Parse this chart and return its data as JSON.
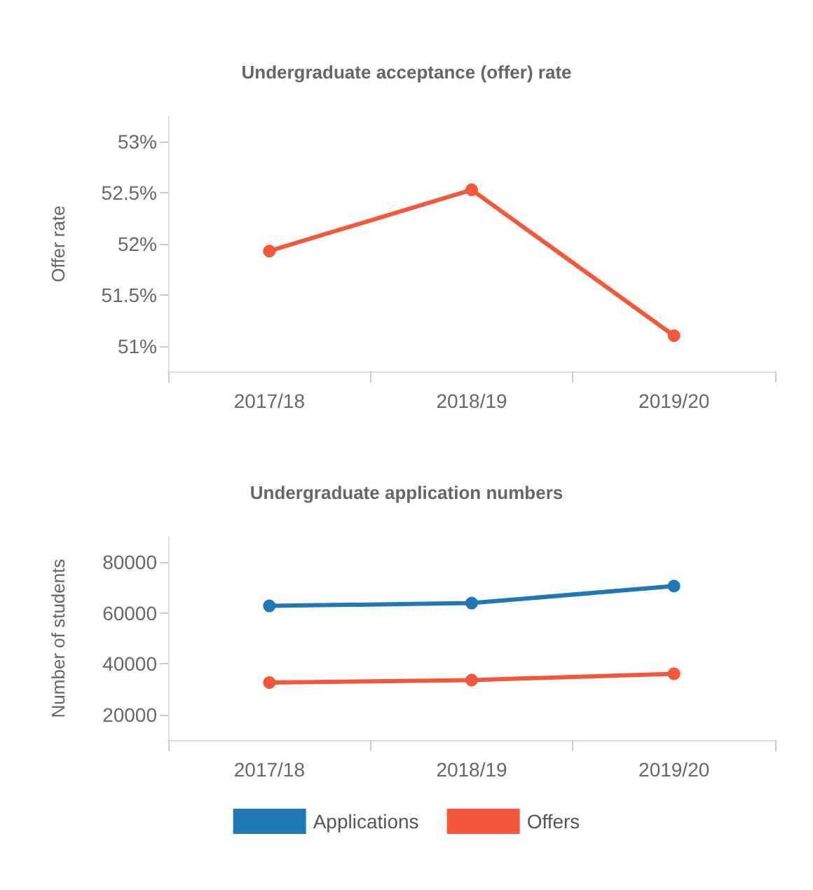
{
  "chart_data": [
    {
      "type": "line",
      "title": "Undergraduate acceptance (offer) rate",
      "ylabel": "Offer rate",
      "categories": [
        "2017/18",
        "2018/19",
        "2019/20"
      ],
      "series": [
        {
          "color": "#f4583a",
          "values": [
            51.93,
            52.53,
            51.1
          ]
        }
      ],
      "ylim": [
        50.75,
        53.25
      ],
      "yticks": [
        {
          "value": 51,
          "label": "51%"
        },
        {
          "value": 51.5,
          "label": "51.5%"
        },
        {
          "value": 52,
          "label": "52%"
        },
        {
          "value": 52.5,
          "label": "52.5%"
        },
        {
          "value": 53,
          "label": "53%"
        }
      ],
      "grid": false,
      "marker": "circle",
      "line_style": "solid"
    },
    {
      "type": "line",
      "title": "Undergraduate application numbers",
      "ylabel": "Number of students",
      "categories": [
        "2017/18",
        "2018/19",
        "2019/20"
      ],
      "series": [
        {
          "name": "Applications",
          "color": "#1f77b4",
          "values": [
            62800,
            63900,
            70600
          ]
        },
        {
          "name": "Offers",
          "color": "#f4583a",
          "values": [
            32600,
            33600,
            36100
          ]
        }
      ],
      "ylim": [
        10000,
        90000
      ],
      "yticks": [
        20000,
        40000,
        60000,
        80000
      ],
      "grid": false,
      "legend": "bottom",
      "marker": "circle",
      "line_style": "solid"
    }
  ]
}
